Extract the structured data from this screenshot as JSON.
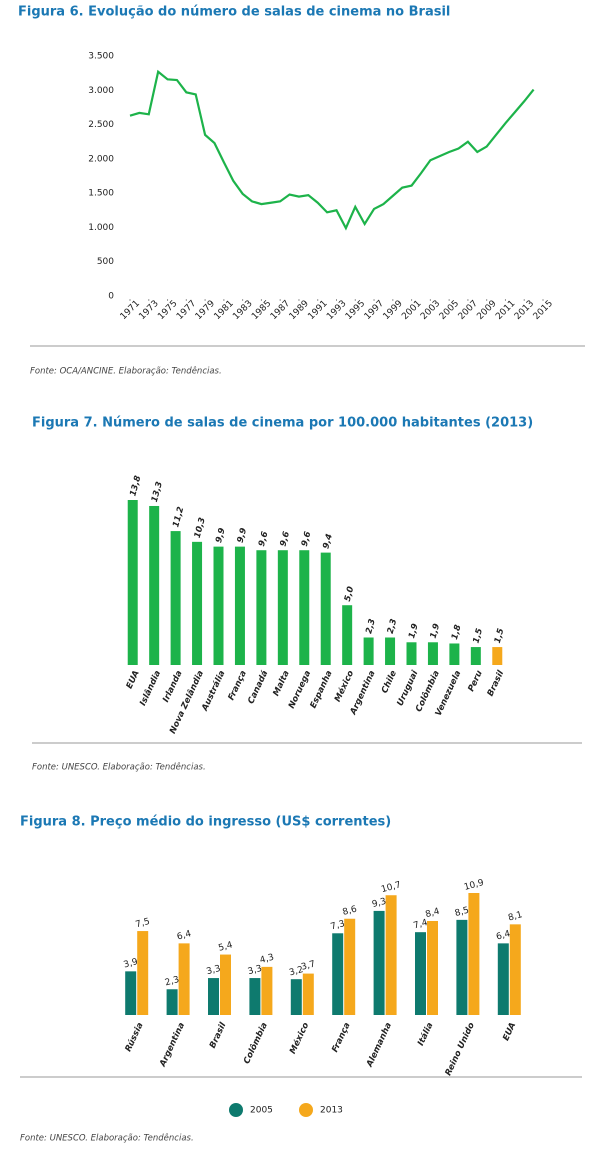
{
  "chart_data": [
    {
      "type": "line",
      "title": "Figura 6. Evolução do número de salas de cinema no Brasil",
      "color": "#1db34a",
      "x": [
        1971,
        1972,
        1973,
        1974,
        1975,
        1976,
        1977,
        1978,
        1979,
        1980,
        1981,
        1982,
        1983,
        1984,
        1985,
        1986,
        1987,
        1988,
        1989,
        1990,
        1991,
        1992,
        1993,
        1994,
        1995,
        1996,
        1997,
        1998,
        1999,
        2000,
        2001,
        2002,
        2003,
        2004,
        2005,
        2006,
        2007,
        2008,
        2009,
        2010,
        2011,
        2012,
        2013,
        2014
      ],
      "values": [
        2630,
        2670,
        2650,
        3270,
        3160,
        3150,
        2970,
        2940,
        2350,
        2230,
        1950,
        1680,
        1490,
        1380,
        1340,
        1360,
        1380,
        1480,
        1450,
        1470,
        1360,
        1220,
        1250,
        990,
        1300,
        1050,
        1270,
        1340,
        1460,
        1580,
        1610,
        1790,
        1980,
        2040,
        2100,
        2150,
        2250,
        2100,
        2180,
        2350,
        2520,
        2680,
        2840,
        3010
      ],
      "xlim": [
        1971,
        2015
      ],
      "xticks": [
        1971,
        1973,
        1975,
        1977,
        1979,
        1981,
        1983,
        1985,
        1987,
        1989,
        1991,
        1993,
        1995,
        1997,
        1999,
        2001,
        2003,
        2005,
        2007,
        2009,
        2011,
        2013,
        2015
      ],
      "ylim": [
        0,
        3500
      ],
      "yticks": [
        0,
        500,
        {
          "value": 1000,
          "label": "1.000"
        },
        {
          "value": 1500,
          "label": "1.500"
        },
        {
          "value": 2000,
          "label": "2.000"
        },
        {
          "value": 2500,
          "label": "2.500"
        },
        {
          "value": 3000,
          "label": "3.000"
        },
        {
          "value": 3500,
          "label": "3.500"
        }
      ],
      "source": "Fonte: OCA/ANCINE. Elaboração: Tendências."
    },
    {
      "type": "bar",
      "title": "Figura 7. Número de salas de cinema por 100.000 habitantes (2013)",
      "categories": [
        "EUA",
        "Islândia",
        "Irlanda",
        "Nova Zelândia",
        "Austrália",
        "França",
        "Canadá",
        "Malta",
        "Noruega",
        "Espanha",
        "México",
        "Argentina",
        "Chile",
        "Uruguai",
        "Colômbia",
        "Venezuela",
        "Peru",
        "Brasil"
      ],
      "values": [
        13.8,
        13.3,
        11.2,
        10.3,
        9.9,
        9.9,
        9.6,
        9.6,
        9.6,
        9.4,
        5.0,
        2.3,
        2.3,
        1.9,
        1.9,
        1.8,
        1.5,
        1.5
      ],
      "value_labels": [
        "13,8",
        "13,3",
        "11,2",
        "10,3",
        "9,9",
        "9,9",
        "9,6",
        "9,6",
        "9,6",
        "9,4",
        "5,0",
        "2,3",
        "2,3",
        "1,9",
        "1,9",
        "1,8",
        "1,5",
        "1,5"
      ],
      "colors": [
        "#1db34a",
        "#1db34a",
        "#1db34a",
        "#1db34a",
        "#1db34a",
        "#1db34a",
        "#1db34a",
        "#1db34a",
        "#1db34a",
        "#1db34a",
        "#1db34a",
        "#1db34a",
        "#1db34a",
        "#1db34a",
        "#1db34a",
        "#1db34a",
        "#1db34a",
        "#f5a81c"
      ],
      "source": "Fonte: UNESCO. Elaboração: Tendências."
    },
    {
      "type": "bar",
      "title": "Figura 8. Preço médio do ingresso (US$ correntes)",
      "categories": [
        "Rússia",
        "Argentina",
        "Brasil",
        "Colômbia",
        "México",
        "França",
        "Alemanha",
        "Itália",
        "Reino Unido",
        "EUA"
      ],
      "series": [
        {
          "name": "2005",
          "color": "#0e7a6e",
          "values": [
            3.9,
            2.3,
            3.3,
            3.3,
            3.2,
            7.3,
            9.3,
            7.4,
            8.5,
            6.4
          ],
          "value_labels": [
            "3,9",
            "2,3",
            "3,3",
            "3,3",
            "3,2",
            "7,3",
            "9,3",
            "7,4",
            "8,5",
            "6,4"
          ]
        },
        {
          "name": "2013",
          "color": "#f5a81c",
          "values": [
            7.5,
            6.4,
            5.4,
            4.3,
            3.7,
            8.6,
            10.7,
            8.4,
            10.9,
            8.1
          ],
          "value_labels": [
            "7,5",
            "6,4",
            "5,4",
            "4,3",
            "3,7",
            "8,6",
            "10,7",
            "8,4",
            "10,9",
            "8,1"
          ]
        }
      ],
      "legend": "bottom",
      "source": "Fonte: UNESCO. Elaboração: Tendências."
    }
  ]
}
